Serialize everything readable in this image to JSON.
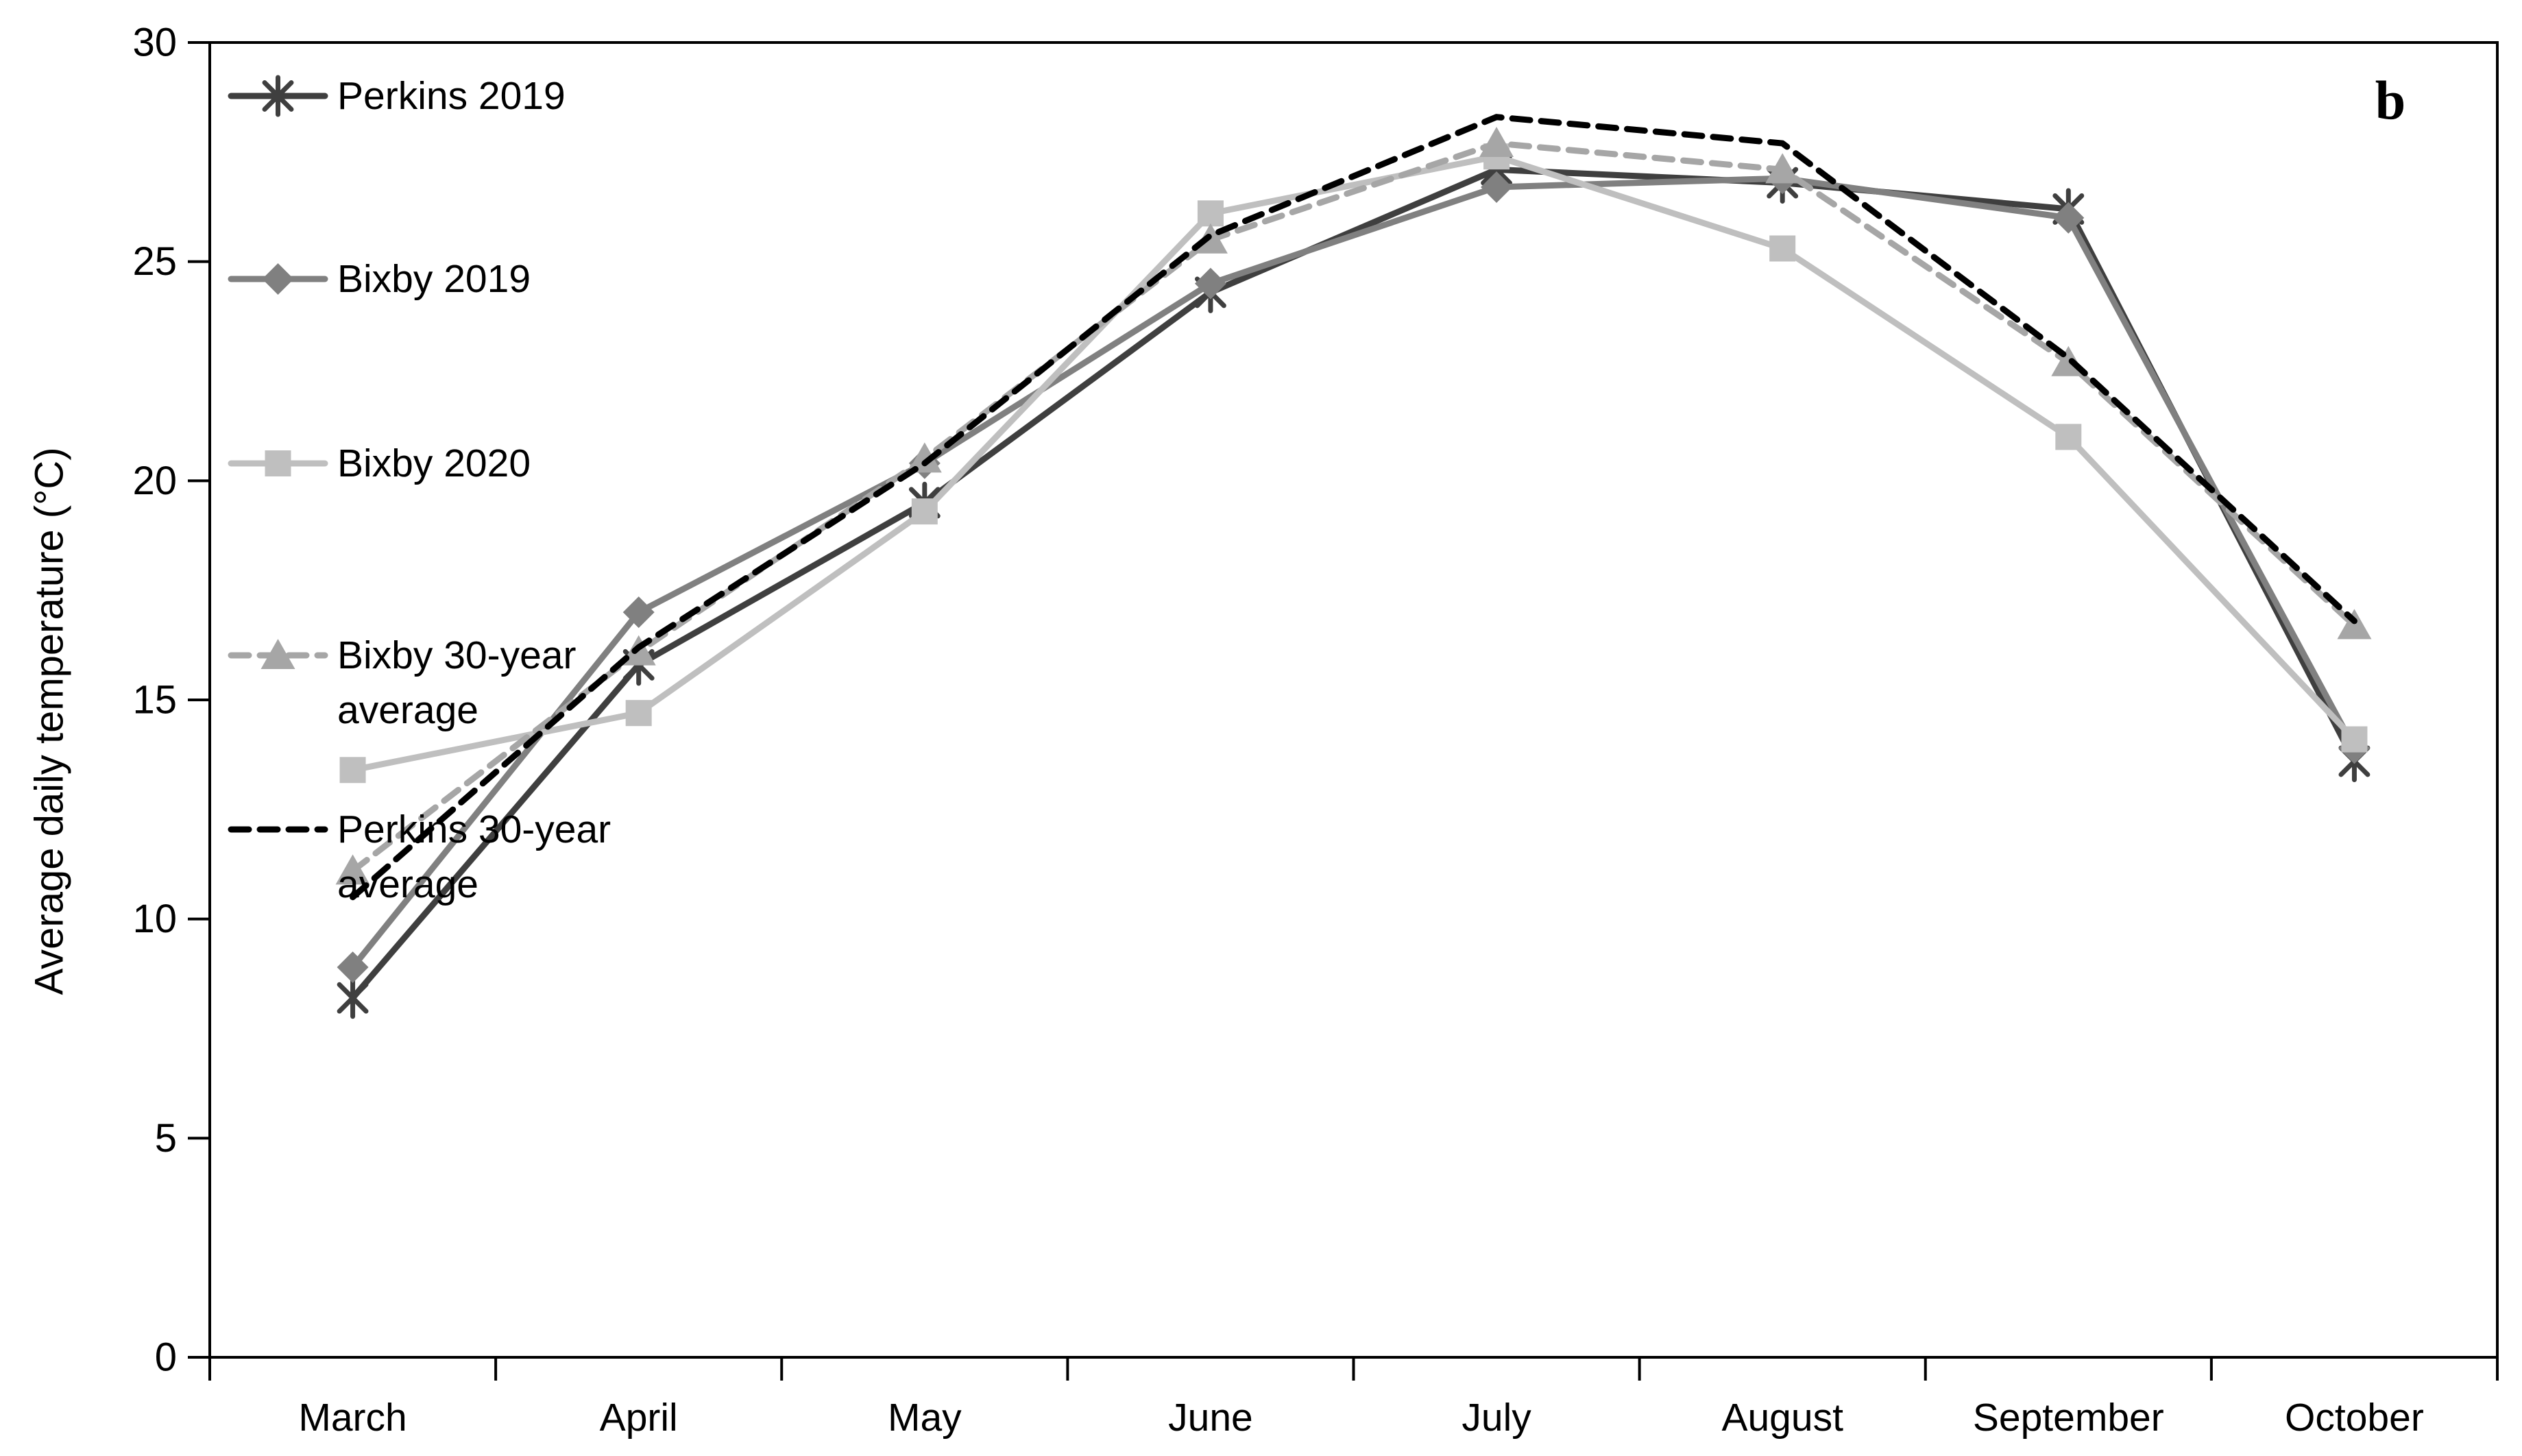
{
  "panel_label": "b",
  "background": "#ffffff",
  "axis_color": "#000000",
  "chart_data": {
    "type": "line",
    "title": "",
    "xlabel": "",
    "ylabel": "Average daily temperature (°C)",
    "ylim": [
      0,
      30
    ],
    "yticks": [
      0,
      5,
      10,
      15,
      20,
      25,
      30
    ],
    "grid": false,
    "legend_position": "top-left-inside",
    "categories": [
      "March",
      "April",
      "May",
      "June",
      "July",
      "August",
      "September",
      "October"
    ],
    "series": [
      {
        "name": "Perkins 2019",
        "legend_lines": [
          "Perkins 2019"
        ],
        "color": "#3f3f3f",
        "line_style": "solid",
        "marker": "asterisk",
        "values": [
          8.2,
          15.8,
          19.5,
          24.3,
          27.1,
          26.8,
          26.2,
          13.6
        ]
      },
      {
        "name": "Bixby 2019",
        "legend_lines": [
          "Bixby 2019"
        ],
        "color": "#808080",
        "line_style": "solid",
        "marker": "diamond",
        "values": [
          8.9,
          17.0,
          20.4,
          24.5,
          26.7,
          26.9,
          26.0,
          13.9
        ]
      },
      {
        "name": "Bixby 2020",
        "legend_lines": [
          "Bixby 2020"
        ],
        "color": "#bfbfbf",
        "line_style": "solid",
        "marker": "square",
        "values": [
          13.4,
          14.7,
          19.3,
          26.1,
          27.4,
          25.3,
          21.0,
          14.1
        ]
      },
      {
        "name": "Bixby 30-year average",
        "legend_lines": [
          "Bixby 30-year",
          "average"
        ],
        "color": "#a6a6a6",
        "line_style": "dashed",
        "marker": "triangle",
        "values": [
          11.1,
          16.1,
          20.5,
          25.5,
          27.7,
          27.1,
          22.7,
          16.7
        ]
      },
      {
        "name": "Perkins 30-year average",
        "legend_lines": [
          "Perkins 30-year",
          "average"
        ],
        "color": "#000000",
        "line_style": "dashed",
        "marker": "none",
        "values": [
          10.5,
          16.2,
          20.4,
          25.6,
          28.3,
          27.7,
          22.8,
          16.8
        ]
      }
    ]
  }
}
